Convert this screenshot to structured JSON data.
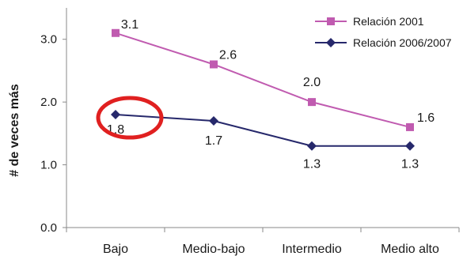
{
  "chart_data": {
    "type": "line",
    "categories": [
      "Bajo",
      "Medio-bajo",
      "Intermedio",
      "Medio alto"
    ],
    "series": [
      {
        "name": "Relación 2001",
        "values": [
          3.1,
          2.6,
          2.0,
          1.6
        ],
        "labels": [
          "3.1",
          "2.6",
          "2.0",
          "1.6"
        ],
        "color": "#c05bb0",
        "marker": "square"
      },
      {
        "name": "Relación 2006/2007",
        "values": [
          1.8,
          1.7,
          1.3,
          1.3
        ],
        "labels": [
          "1.8",
          "1.7",
          "1.3",
          "1.3"
        ],
        "color": "#26286b",
        "marker": "diamond"
      }
    ],
    "ylabel": "# de veces más",
    "ylim": [
      0,
      3.5
    ],
    "yticks": [
      "0.0",
      "1.0",
      "2.0",
      "3.0"
    ],
    "grid": false,
    "legend": "top-right",
    "annotation": {
      "type": "circle",
      "target": "Relación 2006/2007 at Bajo",
      "color": "#e02020"
    }
  }
}
